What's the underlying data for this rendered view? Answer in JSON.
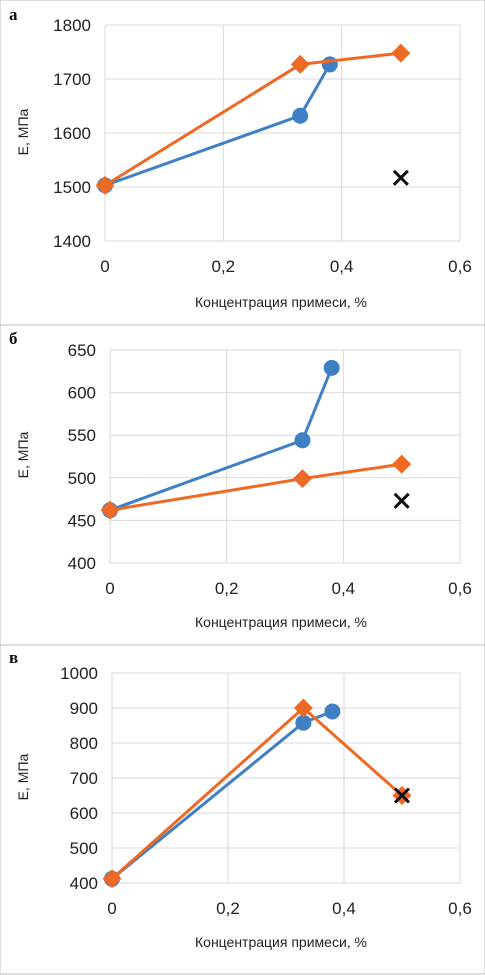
{
  "colors": {
    "blue_series": "#3f80c4",
    "orange_series": "#ee6a24",
    "x_marker": "#111111",
    "grid": "#d9d9d9",
    "frame": "#bfbfbf"
  },
  "chart_data": [
    {
      "type": "scatter",
      "panel_label": "а",
      "xlabel": "Концентрация примеси, %",
      "ylabel": "Е, МПа",
      "xlim": [
        0,
        0.6
      ],
      "ylim": [
        1400,
        1800
      ],
      "x_ticks": [
        "0",
        "0,2",
        "0,4",
        "0,6"
      ],
      "y_ticks": [
        "1400",
        "1500",
        "1600",
        "1700",
        "1800"
      ],
      "grid": true,
      "series": [
        {
          "marker": "circle",
          "color": "#3f80c4",
          "x": [
            0,
            0.33,
            0.38
          ],
          "y": [
            1503,
            1632,
            1727
          ]
        },
        {
          "marker": "diamond",
          "color": "#ee6a24",
          "x": [
            0,
            0.33,
            0.5
          ],
          "y": [
            1503,
            1727,
            1748
          ]
        },
        {
          "marker": "x",
          "color": "#111111",
          "x": [
            0.5
          ],
          "y": [
            1517
          ]
        }
      ]
    },
    {
      "type": "scatter",
      "panel_label": "б",
      "xlabel": "Концентрация примеси, %",
      "ylabel": "Е, МПа",
      "xlim": [
        0,
        0.6
      ],
      "ylim": [
        400,
        650
      ],
      "x_ticks": [
        "0",
        "0,2",
        "0,4",
        "0,6"
      ],
      "y_ticks": [
        "400",
        "450",
        "500",
        "550",
        "600",
        "650"
      ],
      "grid": true,
      "series": [
        {
          "marker": "circle",
          "color": "#3f80c4",
          "x": [
            0,
            0.33,
            0.38
          ],
          "y": [
            462,
            544,
            629
          ]
        },
        {
          "marker": "diamond",
          "color": "#ee6a24",
          "x": [
            0,
            0.33,
            0.5
          ],
          "y": [
            462,
            499,
            516
          ]
        },
        {
          "marker": "x",
          "color": "#111111",
          "x": [
            0.5
          ],
          "y": [
            473
          ]
        }
      ]
    },
    {
      "type": "scatter",
      "panel_label": "в",
      "xlabel": "Концентрация примеси, %",
      "ylabel": "Е, МПа",
      "xlim": [
        0,
        0.6
      ],
      "ylim": [
        400,
        1000
      ],
      "x_ticks": [
        "0",
        "0,2",
        "0,4",
        "0,6"
      ],
      "y_ticks": [
        "400",
        "500",
        "600",
        "700",
        "800",
        "900",
        "1000"
      ],
      "grid": true,
      "series": [
        {
          "marker": "circle",
          "color": "#3f80c4",
          "x": [
            0,
            0.33,
            0.38
          ],
          "y": [
            412,
            858,
            890
          ]
        },
        {
          "marker": "diamond",
          "color": "#ee6a24",
          "x": [
            0,
            0.33,
            0.5
          ],
          "y": [
            412,
            900,
            650
          ]
        },
        {
          "marker": "x",
          "color": "#111111",
          "x": [
            0.5
          ],
          "y": [
            650
          ]
        }
      ]
    }
  ]
}
